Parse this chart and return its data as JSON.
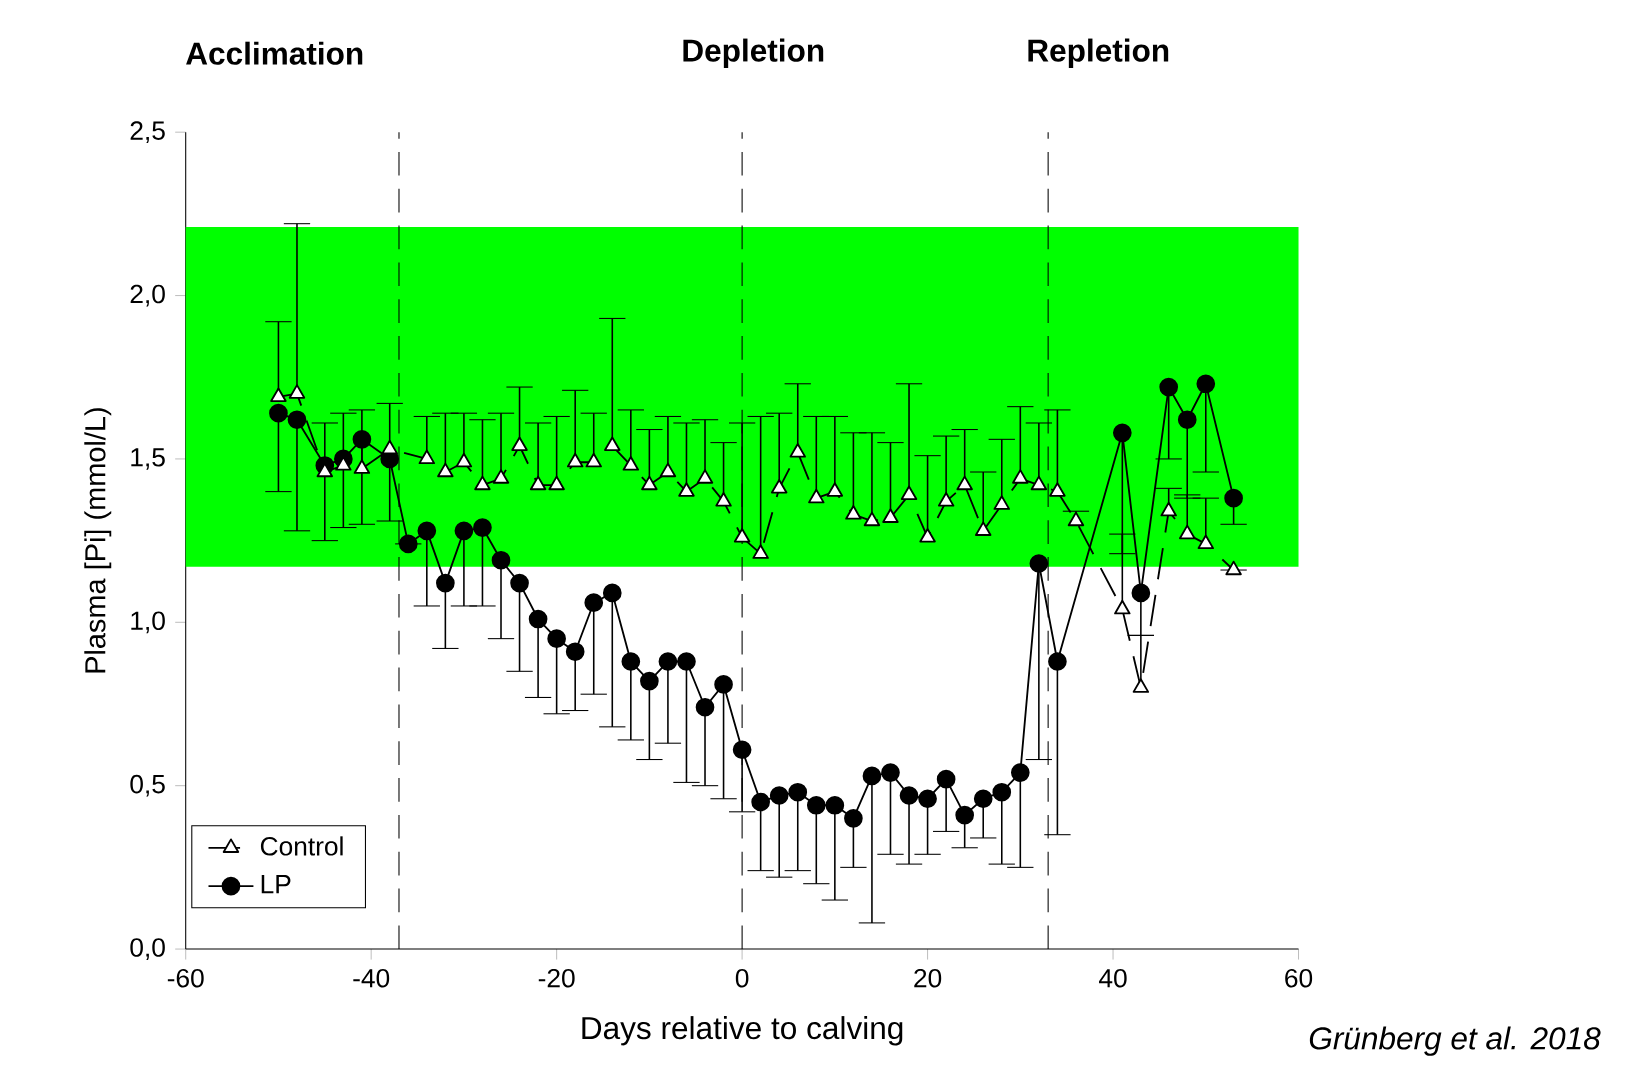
{
  "chart_data": {
    "type": "line",
    "xlabel": "Days relative to calving",
    "ylabel": "Plasma [Pi] (mmol/L)",
    "annotations": [
      "Acclimation",
      "Depletion",
      "Repletion",
      "Grünberg et al. 2018"
    ],
    "xlim": [
      -60,
      60
    ],
    "xticks": [
      -60,
      -40,
      -20,
      0,
      20,
      40,
      60
    ],
    "ylim": [
      0,
      2.5
    ],
    "yticks": [
      {
        "value": 0,
        "label": "0,0"
      },
      {
        "value": 0.5,
        "label": "0,5"
      },
      {
        "value": 1,
        "label": "1,0"
      },
      {
        "value": 1.5,
        "label": "1,5"
      },
      {
        "value": 2,
        "label": "2,0"
      },
      {
        "value": 2.5,
        "label": "2,5"
      }
    ],
    "legend": "bottom left",
    "bands": [
      {
        "axis": "y",
        "from": 1.17,
        "to": 2.21,
        "color": "#00ff00"
      }
    ],
    "ref_lines": [
      {
        "axis": "x",
        "value": -37,
        "line_style": "dashed"
      },
      {
        "axis": "x",
        "value": 0,
        "line_style": "dashed"
      },
      {
        "axis": "x",
        "value": 33,
        "line_style": "dashed"
      }
    ],
    "series": [
      {
        "name": "Control",
        "color": "#000000",
        "marker": "triangle",
        "line_style": "dashed",
        "x": [
          -50,
          -48,
          -45,
          -43,
          -41,
          -38,
          -34,
          -32,
          -30,
          -28,
          -26,
          -24,
          -22,
          -20,
          -18,
          -16,
          -14,
          -12,
          -10,
          -8,
          -6,
          -4,
          -2,
          0,
          2,
          4,
          6,
          8,
          10,
          12,
          14,
          16,
          18,
          20,
          22,
          24,
          26,
          28,
          30,
          32,
          34,
          36,
          41,
          43,
          46,
          48,
          50,
          53
        ],
        "values": [
          1.69,
          1.7,
          1.46,
          1.48,
          1.47,
          1.53,
          1.5,
          1.46,
          1.49,
          1.42,
          1.44,
          1.54,
          1.42,
          1.42,
          1.49,
          1.49,
          1.54,
          1.48,
          1.42,
          1.46,
          1.4,
          1.44,
          1.37,
          1.26,
          1.21,
          1.41,
          1.52,
          1.38,
          1.4,
          1.33,
          1.31,
          1.32,
          1.39,
          1.26,
          1.37,
          1.42,
          1.28,
          1.36,
          1.44,
          1.42,
          1.4,
          1.31,
          1.04,
          0.8,
          1.34,
          1.27,
          1.24,
          1.16
        ],
        "errors": [
          [
            1.69,
            1.92
          ],
          [
            1.7,
            2.22
          ],
          [
            1.46,
            1.61
          ],
          [
            1.48,
            1.64
          ],
          [
            1.47,
            1.65
          ],
          [
            1.53,
            1.67
          ],
          [
            1.5,
            1.63
          ],
          [
            1.46,
            1.64
          ],
          [
            1.49,
            1.64
          ],
          [
            1.42,
            1.62
          ],
          [
            1.44,
            1.64
          ],
          [
            1.54,
            1.72
          ],
          [
            1.42,
            1.61
          ],
          [
            1.42,
            1.63
          ],
          [
            1.49,
            1.71
          ],
          [
            1.49,
            1.64
          ],
          [
            1.54,
            1.93
          ],
          [
            1.48,
            1.65
          ],
          [
            1.42,
            1.59
          ],
          [
            1.46,
            1.63
          ],
          [
            1.4,
            1.61
          ],
          [
            1.44,
            1.62
          ],
          [
            1.37,
            1.55
          ],
          [
            1.26,
            1.61
          ],
          [
            1.21,
            1.63
          ],
          [
            1.41,
            1.64
          ],
          [
            1.52,
            1.73
          ],
          [
            1.38,
            1.63
          ],
          [
            1.4,
            1.63
          ],
          [
            1.33,
            1.58
          ],
          [
            1.31,
            1.58
          ],
          [
            1.32,
            1.55
          ],
          [
            1.39,
            1.73
          ],
          [
            1.26,
            1.51
          ],
          [
            1.37,
            1.57
          ],
          [
            1.42,
            1.59
          ],
          [
            1.28,
            1.46
          ],
          [
            1.36,
            1.56
          ],
          [
            1.44,
            1.66
          ],
          [
            1.42,
            1.61
          ],
          [
            1.4,
            1.65
          ],
          [
            1.31,
            1.34
          ],
          [
            1.04,
            1.27
          ],
          [
            0.8,
            0.96
          ],
          [
            1.34,
            1.41
          ],
          [
            1.27,
            1.39
          ],
          [
            1.24,
            1.38
          ],
          null
        ]
      },
      {
        "name": "LP",
        "color": "#000000",
        "marker": "circle",
        "line_style": "solid",
        "x": [
          -50,
          -48,
          -45,
          -43,
          -41,
          -38,
          -36,
          -34,
          -32,
          -30,
          -28,
          -26,
          -24,
          -22,
          -20,
          -18,
          -16,
          -14,
          -12,
          -10,
          -8,
          -6,
          -4,
          -2,
          0,
          2,
          4,
          6,
          8,
          10,
          12,
          14,
          16,
          18,
          20,
          22,
          24,
          26,
          28,
          30,
          32,
          34,
          41,
          43,
          46,
          48,
          50,
          53
        ],
        "values": [
          1.64,
          1.62,
          1.48,
          1.5,
          1.56,
          1.5,
          1.24,
          1.28,
          1.12,
          1.28,
          1.29,
          1.19,
          1.12,
          1.01,
          0.95,
          0.91,
          1.06,
          1.09,
          0.88,
          0.82,
          0.88,
          0.88,
          0.74,
          0.81,
          0.61,
          0.45,
          0.47,
          0.48,
          0.44,
          0.44,
          0.4,
          0.53,
          0.54,
          0.47,
          0.46,
          0.52,
          0.41,
          0.46,
          0.48,
          0.54,
          1.18,
          0.88,
          1.58,
          1.09,
          1.72,
          1.62,
          1.73,
          1.38
        ],
        "errors": [
          [
            1.4,
            1.64
          ],
          [
            1.28,
            1.62
          ],
          [
            1.25,
            1.48
          ],
          [
            1.29,
            1.5
          ],
          [
            1.3,
            1.56
          ],
          [
            1.31,
            1.5
          ],
          null,
          [
            1.05,
            1.28
          ],
          [
            0.92,
            1.12
          ],
          [
            1.05,
            1.28
          ],
          [
            1.05,
            1.29
          ],
          [
            0.95,
            1.19
          ],
          [
            0.85,
            1.12
          ],
          [
            0.77,
            1.01
          ],
          [
            0.72,
            0.95
          ],
          [
            0.73,
            0.91
          ],
          [
            0.78,
            1.06
          ],
          [
            0.68,
            1.09
          ],
          [
            0.64,
            0.88
          ],
          [
            0.58,
            0.82
          ],
          [
            0.63,
            0.88
          ],
          [
            0.51,
            0.88
          ],
          [
            0.5,
            0.74
          ],
          [
            0.46,
            0.81
          ],
          [
            0.42,
            0.61
          ],
          [
            0.24,
            0.45
          ],
          [
            0.22,
            0.47
          ],
          [
            0.24,
            0.48
          ],
          [
            0.2,
            0.44
          ],
          [
            0.15,
            0.44
          ],
          [
            0.25,
            0.4
          ],
          [
            0.08,
            0.53
          ],
          [
            0.29,
            0.54
          ],
          [
            0.26,
            0.47
          ],
          [
            0.29,
            0.46
          ],
          [
            0.36,
            0.52
          ],
          [
            0.31,
            0.41
          ],
          [
            0.34,
            0.46
          ],
          [
            0.26,
            0.48
          ],
          [
            0.25,
            0.54
          ],
          [
            0.58,
            1.18
          ],
          [
            0.35,
            0.88
          ],
          [
            1.21,
            1.58
          ],
          [
            0.96,
            1.09
          ],
          [
            1.5,
            1.72
          ],
          [
            1.38,
            1.62
          ],
          [
            1.46,
            1.73
          ],
          [
            1.3,
            1.38
          ]
        ]
      }
    ]
  }
}
